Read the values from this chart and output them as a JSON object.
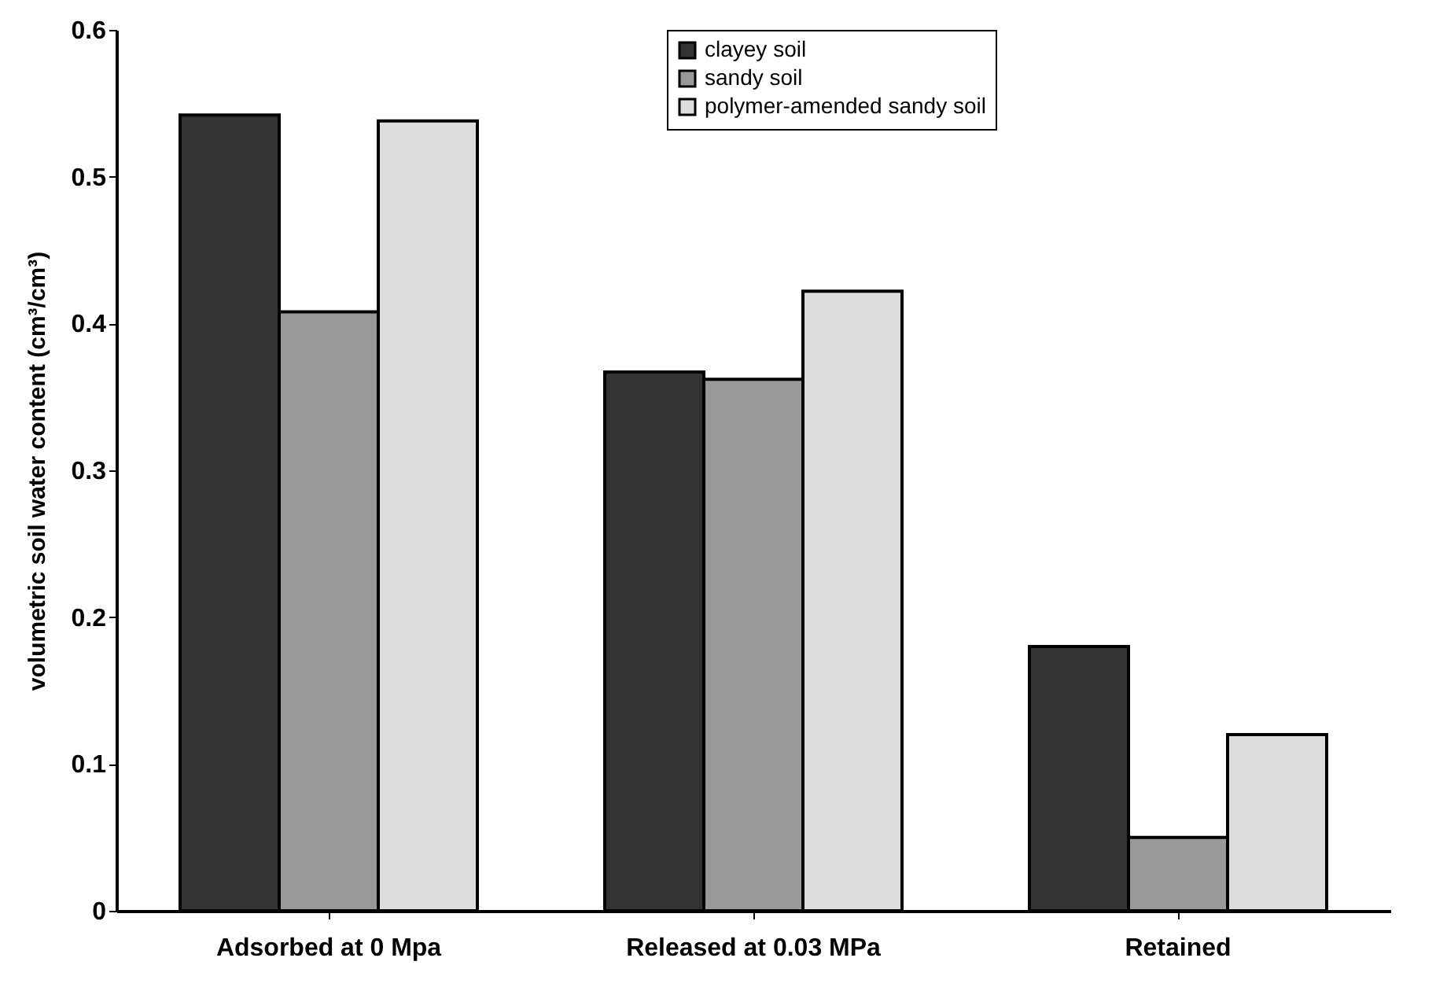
{
  "chart_data": {
    "type": "bar",
    "ylabel": "volumetric soil water content  (cm³/cm³)",
    "categories": [
      "Adsorbed at 0 Mpa",
      "Released at 0.03 MPa",
      "Retained"
    ],
    "series": [
      {
        "name": "clayey soil",
        "color": "#333333",
        "values": [
          0.542,
          0.367,
          0.18
        ]
      },
      {
        "name": "sandy soil",
        "color": "#999999",
        "values": [
          0.408,
          0.362,
          0.05
        ]
      },
      {
        "name": "polymer-amended sandy soil",
        "color": "#dddddd",
        "values": [
          0.538,
          0.422,
          0.12
        ]
      }
    ],
    "ylim": [
      0,
      0.6
    ],
    "yticks": [
      0,
      0.1,
      0.2,
      0.3,
      0.4,
      0.5,
      0.6
    ],
    "grid": false,
    "legend": "top"
  }
}
